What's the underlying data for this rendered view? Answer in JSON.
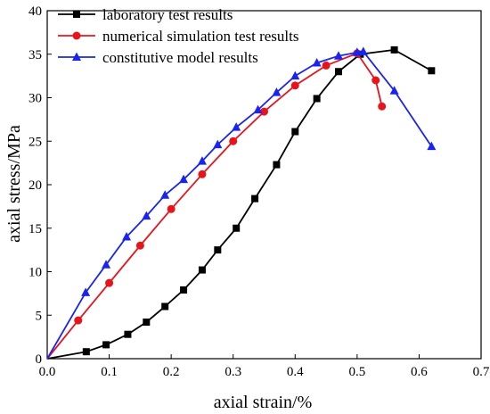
{
  "chart_data": {
    "type": "line",
    "title": "",
    "xlabel": "axial strain/%",
    "ylabel": "axial stress/MPa",
    "xlim": [
      0.0,
      0.7
    ],
    "ylim": [
      0,
      40
    ],
    "xticks": [
      "0.0",
      "0.1",
      "0.2",
      "0.3",
      "0.4",
      "0.5",
      "0.6",
      "0.7"
    ],
    "yticks": [
      "0",
      "5",
      "10",
      "15",
      "20",
      "25",
      "30",
      "35",
      "40"
    ],
    "grid": false,
    "legend_position": "top-left",
    "series": [
      {
        "name": "laboratory test results",
        "color": "#000000",
        "marker": "square",
        "x": [
          0.0,
          0.063,
          0.095,
          0.13,
          0.16,
          0.19,
          0.22,
          0.25,
          0.275,
          0.305,
          0.335,
          0.37,
          0.4,
          0.435,
          0.47,
          0.505,
          0.56,
          0.62
        ],
        "y": [
          0,
          0.8,
          1.6,
          2.8,
          4.2,
          6.0,
          7.9,
          10.2,
          12.5,
          15.0,
          18.4,
          22.3,
          26.1,
          29.9,
          33.0,
          35.0,
          35.5,
          33.1
        ]
      },
      {
        "name": "numerical simulation test results",
        "color": "#e8141c",
        "marker": "circle",
        "x": [
          0.0,
          0.05,
          0.1,
          0.15,
          0.2,
          0.25,
          0.3,
          0.35,
          0.4,
          0.45,
          0.5,
          0.53,
          0.54
        ],
        "y": [
          0,
          4.4,
          8.7,
          13.0,
          17.2,
          21.2,
          25.0,
          28.4,
          31.4,
          33.7,
          35.1,
          32.0,
          29.0
        ]
      },
      {
        "name": "constitutive model results",
        "color": "#1a24f2",
        "marker": "triangle",
        "x": [
          0.0,
          0.062,
          0.095,
          0.128,
          0.16,
          0.19,
          0.22,
          0.25,
          0.275,
          0.305,
          0.34,
          0.37,
          0.4,
          0.435,
          0.47,
          0.5,
          0.51,
          0.56,
          0.62
        ],
        "y": [
          0,
          7.6,
          10.8,
          14.0,
          16.4,
          18.8,
          20.6,
          22.7,
          24.6,
          26.6,
          28.6,
          30.6,
          32.5,
          34.0,
          34.8,
          35.2,
          35.3,
          30.8,
          24.4
        ]
      }
    ]
  }
}
